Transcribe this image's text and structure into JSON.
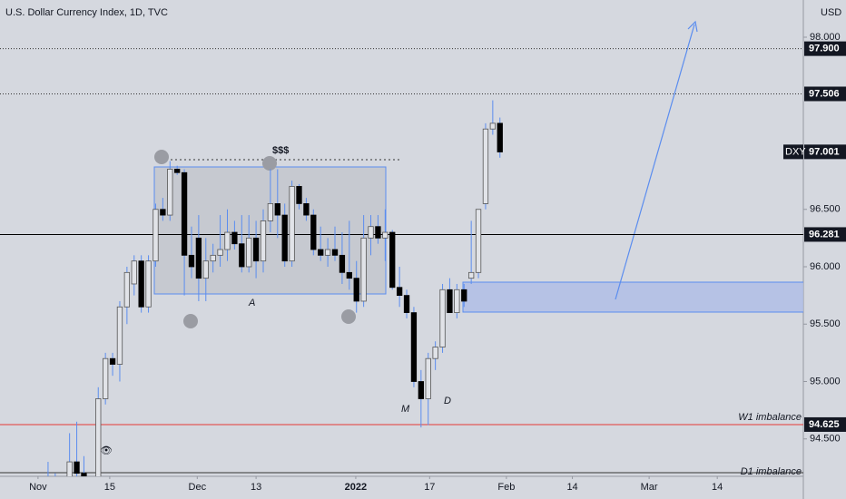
{
  "chart_data": {
    "type": "candlestick",
    "title": "U.S. Dollar Currency Index, 1D, TVC",
    "currency": "USD",
    "ylim": [
      94.174,
      98.324
    ],
    "xlim": [
      -6.7,
      105.3
    ],
    "yticks": [
      {
        "value": 94.5,
        "label": "94.500"
      },
      {
        "value": 95,
        "label": "95.000"
      },
      {
        "value": 95.5,
        "label": "95.500"
      },
      {
        "value": 96,
        "label": "96.000"
      },
      {
        "value": 96.5,
        "label": "96.500"
      },
      {
        "value": 98,
        "label": "98.000"
      }
    ],
    "xticks": [
      {
        "value": -1.4,
        "label": "Nov"
      },
      {
        "value": 8.6,
        "label": "15"
      },
      {
        "value": 20.8,
        "label": "Dec"
      },
      {
        "value": 29,
        "label": "13"
      },
      {
        "value": 42.9,
        "label": "2022"
      },
      {
        "value": 53.2,
        "label": "17"
      },
      {
        "value": 63.9,
        "label": "Feb"
      },
      {
        "value": 73.1,
        "label": "14"
      },
      {
        "value": 83.8,
        "label": "Mar"
      },
      {
        "value": 93.3,
        "label": "14"
      }
    ],
    "up_color": "#e1e3e8",
    "down_color": "#000000",
    "wick_color": "#5b8def",
    "ohlc": {
      "x": [
        0,
        1,
        2,
        3,
        4,
        5,
        6,
        7,
        8,
        9,
        10,
        11,
        12,
        13,
        14,
        15,
        16,
        17,
        18,
        19,
        20,
        21,
        22,
        23,
        24,
        25,
        26,
        27,
        28,
        29,
        30,
        31,
        32,
        33,
        34,
        35,
        36,
        37,
        38,
        39,
        40,
        41,
        42,
        43,
        44,
        45,
        46,
        47,
        48,
        49,
        50,
        51,
        52,
        53,
        54,
        55,
        56,
        57,
        58,
        59,
        60,
        61,
        62,
        63
      ],
      "open": [
        94.15,
        94.1,
        94.05,
        94.1,
        94.3,
        94.2,
        94.05,
        94,
        94.85,
        95.2,
        95.15,
        95.65,
        95.85,
        96.05,
        95.65,
        96.05,
        96.5,
        96.45,
        96.85,
        96.82,
        96.1,
        96.25,
        95.9,
        96.05,
        96.1,
        96.15,
        96.3,
        96.2,
        96,
        96.25,
        96.05,
        96.4,
        96.55,
        96.45,
        96.05,
        96.7,
        96.55,
        96.45,
        96.15,
        96.1,
        96.15,
        96.1,
        95.95,
        95.9,
        95.7,
        96.25,
        96.35,
        96.25,
        96.3,
        95.82,
        95.75,
        95.6,
        95,
        94.85,
        95.2,
        95.3,
        95.8,
        95.6,
        95.8,
        95.9,
        95.95,
        96.55,
        97.2,
        97.25
      ],
      "high": [
        94.3,
        94.2,
        94.15,
        94.55,
        94.65,
        94.35,
        94.15,
        94.95,
        95.25,
        95.25,
        95.7,
        96,
        96.1,
        96.1,
        96.1,
        96.55,
        96.6,
        96.92,
        96.88,
        96.85,
        96.35,
        96.45,
        96.25,
        96.2,
        96.45,
        96.5,
        96.4,
        96.45,
        96.45,
        96.4,
        96.5,
        96.85,
        96.85,
        96.55,
        96.75,
        96.72,
        96.6,
        96.5,
        96.35,
        96.25,
        96.35,
        96.3,
        96.4,
        96.05,
        96.45,
        96.45,
        96.45,
        96.5,
        96.32,
        96,
        95.8,
        95.65,
        95.1,
        95.25,
        95.35,
        95.85,
        95.9,
        95.85,
        95.85,
        96.4,
        96.5,
        97.25,
        97.45,
        97.3
      ],
      "low": [
        94,
        94,
        93.98,
        94,
        94.1,
        94,
        93.98,
        93.98,
        94.8,
        95.05,
        95,
        95.5,
        95.75,
        95.6,
        95.6,
        96,
        96.4,
        96.4,
        96.8,
        95.75,
        95.9,
        95.7,
        95.7,
        95.95,
        96,
        96.05,
        96.15,
        95.95,
        95.95,
        95.9,
        95.95,
        96.3,
        96.25,
        96,
        96,
        96.5,
        96.4,
        96.1,
        96.05,
        96,
        96.05,
        95.85,
        95.8,
        95.6,
        95.65,
        96.1,
        96.2,
        96.05,
        95.8,
        95.65,
        95.55,
        94.95,
        94.6,
        94.62,
        95.1,
        95.25,
        95.6,
        95.55,
        95.65,
        95.85,
        95.9,
        96.5,
        97.15,
        96.95
      ],
      "close": [
        94.1,
        94.05,
        94.1,
        94.3,
        94.2,
        94.05,
        94,
        94.85,
        95.2,
        95.15,
        95.65,
        95.95,
        96.05,
        95.65,
        96.05,
        96.5,
        96.45,
        96.85,
        96.82,
        96.1,
        96,
        95.9,
        96.05,
        96.1,
        96.15,
        96.3,
        96.2,
        96,
        96.25,
        96.05,
        96.4,
        96.55,
        96.45,
        96.05,
        96.7,
        96.55,
        96.45,
        96.15,
        96.1,
        96.15,
        96.1,
        95.95,
        95.9,
        95.7,
        96.25,
        96.35,
        96.25,
        96.3,
        95.82,
        95.75,
        95.6,
        95,
        94.85,
        95.2,
        95.3,
        95.8,
        95.6,
        95.8,
        95.7,
        95.95,
        96.5,
        97.2,
        97.25,
        97
      ]
    },
    "levels": [
      {
        "value": 97.9,
        "label": "97.900",
        "style": "dotted",
        "color": "#333333"
      },
      {
        "value": 97.506,
        "label": "97.506",
        "style": "dotted",
        "color": "#333333"
      },
      {
        "value": 96.281,
        "label": "96.281",
        "style": "solid",
        "color": "#000000"
      },
      {
        "value": 94.625,
        "label": "94.625",
        "style": "solid",
        "color": "#e53935",
        "name": "W1 imbalance"
      }
    ],
    "last_price": {
      "symbol": "DXY",
      "value": 97.001,
      "label": "97.001"
    },
    "annotations": [
      "$$$",
      "A",
      "M",
      "D",
      "D1 imbalance"
    ]
  }
}
